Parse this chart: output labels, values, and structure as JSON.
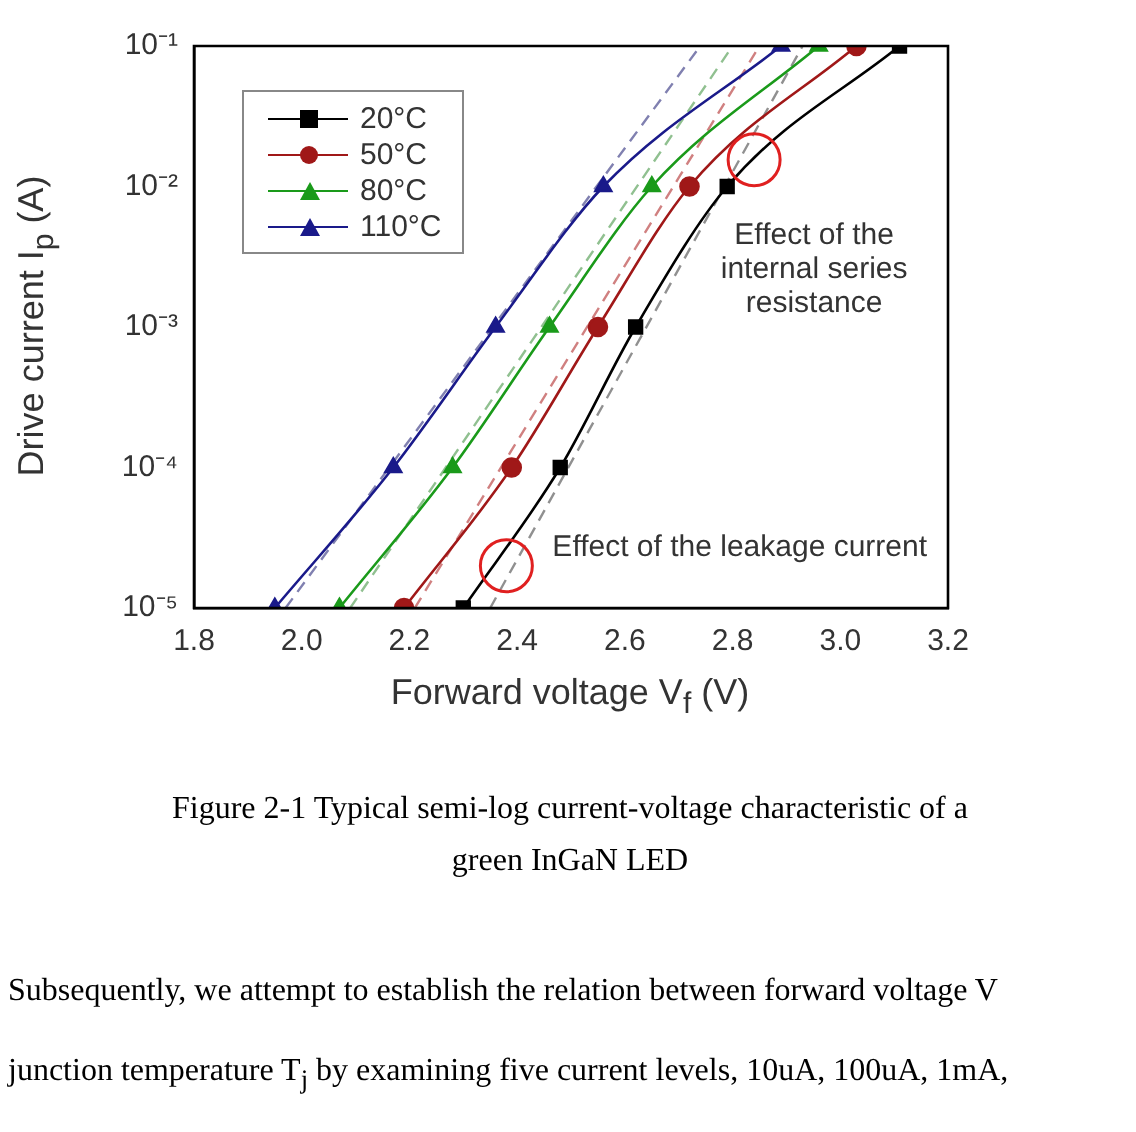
{
  "chart_data": {
    "type": "line",
    "xlabel": "Forward voltage V$_{f}$ (V)",
    "ylabel": "Drive current I$_{p}$ (A)",
    "xlim": [
      1.8,
      3.2
    ],
    "xticks": [
      1.8,
      {
        "value": 2.0,
        "label": "2.0"
      },
      2.2,
      2.4,
      2.6,
      2.8,
      {
        "value": 3.0,
        "label": "3.0"
      },
      3.2
    ],
    "ylim": [
      1e-05,
      0.1
    ],
    "yticks": [
      {
        "value": 1e-05,
        "label": "10⁻⁵"
      },
      {
        "value": 0.0001,
        "label": "10⁻⁴"
      },
      {
        "value": 0.001,
        "label": "10⁻³"
      },
      {
        "value": 0.01,
        "label": "10⁻²"
      },
      {
        "value": 0.1,
        "label": "10⁻¹"
      }
    ],
    "log": "y",
    "grid": false,
    "legend": "top left",
    "series": [
      {
        "name": "20°C",
        "color": "#000000",
        "marker": "square",
        "line_style": "solid",
        "x": [
          2.3,
          2.48,
          2.62,
          2.79,
          3.11
        ],
        "values": [
          1e-05,
          0.0001,
          0.001,
          0.01,
          0.1
        ]
      },
      {
        "name": "50°C",
        "color": "#a01818",
        "marker": "circle",
        "line_style": "solid",
        "x": [
          2.19,
          2.39,
          2.55,
          2.72,
          3.03
        ],
        "values": [
          1e-05,
          0.0001,
          0.001,
          0.01,
          0.1
        ]
      },
      {
        "name": "80°C",
        "color": "#1a9a1a",
        "marker": "triangle",
        "line_style": "solid",
        "x": [
          2.07,
          2.28,
          2.46,
          2.65,
          2.96
        ],
        "values": [
          1e-05,
          0.0001,
          0.001,
          0.01,
          0.1
        ]
      },
      {
        "name": "110°C",
        "color": "#1a1a8a",
        "marker": "triangle",
        "line_style": "solid",
        "x": [
          1.95,
          2.17,
          2.36,
          2.56,
          2.89
        ],
        "values": [
          1e-05,
          0.0001,
          0.001,
          0.01,
          0.1
        ]
      },
      {
        "color": "#909090",
        "marker": "none",
        "line_style": "dashed",
        "x": [
          2.35,
          2.93
        ],
        "values": [
          1e-05,
          0.1
        ]
      },
      {
        "color": "#d08080",
        "marker": "none",
        "line_style": "dashed",
        "x": [
          2.21,
          2.85
        ],
        "values": [
          1e-05,
          0.1
        ]
      },
      {
        "color": "#90c090",
        "marker": "none",
        "line_style": "dashed",
        "x": [
          2.09,
          2.8
        ],
        "values": [
          1e-05,
          0.1
        ]
      },
      {
        "color": "#8080b0",
        "marker": "none",
        "line_style": "dashed",
        "x": [
          1.97,
          2.74
        ],
        "values": [
          1e-05,
          0.1
        ]
      }
    ],
    "annotations": [
      {
        "text": "Effect of the internal series resistance",
        "x": 2.84,
        "y": 0.0155
      },
      {
        "text": "Effect of the leakage current",
        "x": 2.38,
        "y": 2e-05
      },
      "Figure 2-1 Typical semi-log current-voltage characteristic of a green InGaN LED",
      "Subsequently, we attempt to establish the relation between forward voltage V",
      "junction temperature T$_{j}$ by examining five current levels, 10uA, 100uA, 1mA,"
    ]
  }
}
